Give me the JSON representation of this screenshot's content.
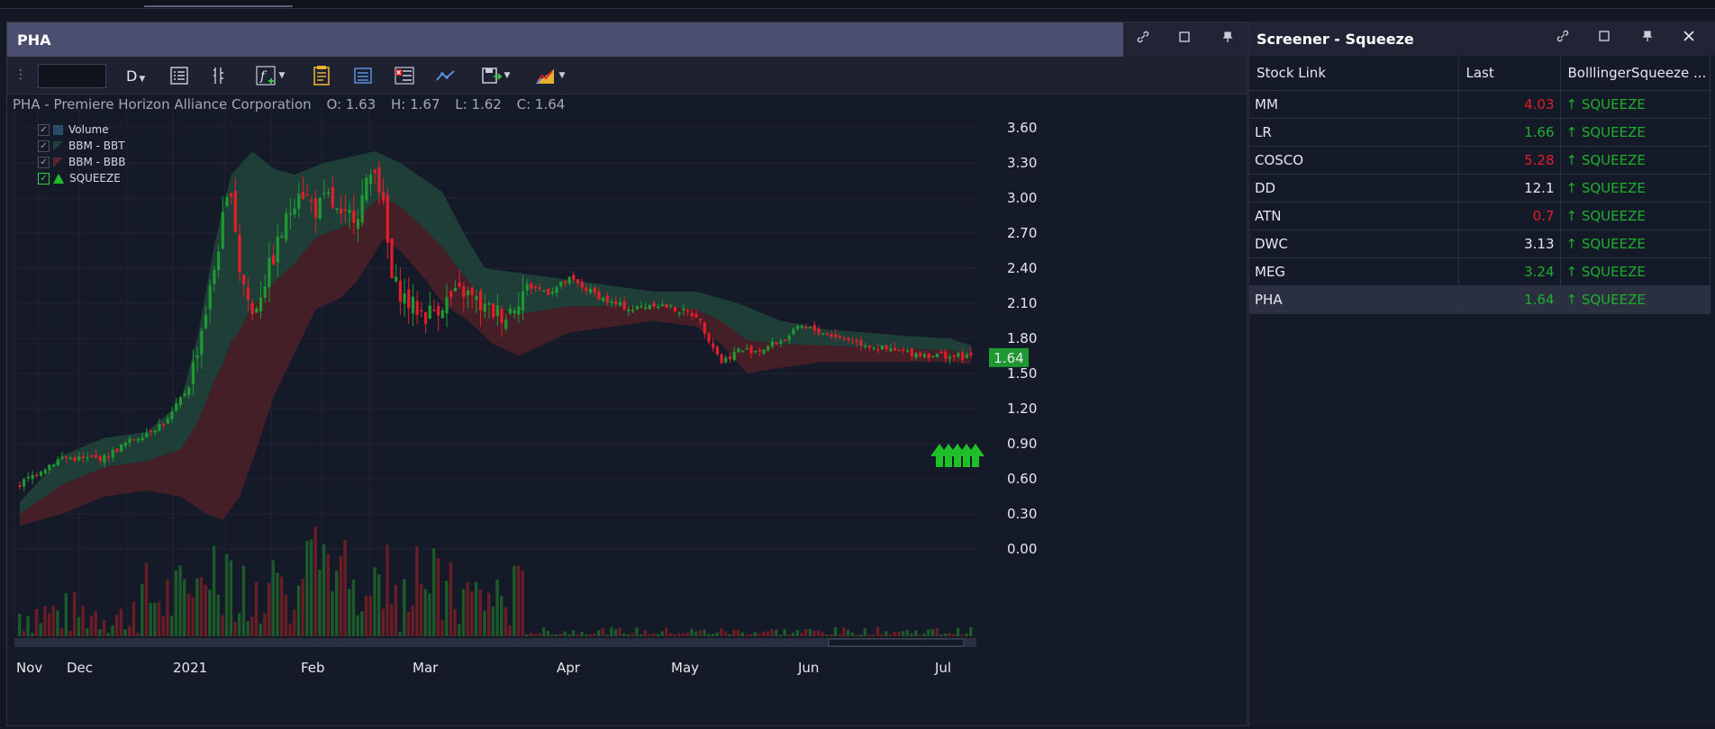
{
  "chart_panel": {
    "title": "PHA",
    "toolbar": {
      "symbol_value": "",
      "period": "D"
    },
    "info": {
      "name": "PHA - Premiere Horizon Alliance Corporation",
      "open": "O: 1.63",
      "high": "H: 1.67",
      "low": "L: 1.62",
      "close": "C: 1.64"
    },
    "legend": [
      {
        "label": "Volume",
        "checked": true
      },
      {
        "label": "BBM - BBT",
        "checked": true
      },
      {
        "label": "BBM - BBB",
        "checked": true
      },
      {
        "label": "SQUEEZE",
        "checked": true
      }
    ],
    "last_price_tag": "1.64"
  },
  "chart_data": {
    "type": "candlestick",
    "title": "PHA - Premiere Horizon Alliance Corporation",
    "y_ticks": [
      "3.60",
      "3.30",
      "3.00",
      "2.70",
      "2.40",
      "2.10",
      "1.80",
      "1.50",
      "1.20",
      "0.90",
      "0.60",
      "0.30",
      "0.00"
    ],
    "ylim": [
      -0.25,
      3.75
    ],
    "x_ticks": [
      "Nov",
      "Dec",
      "2021",
      "Feb",
      "Mar",
      "Apr",
      "May",
      "Jun",
      "Jul"
    ],
    "ohlc_last": {
      "open": 1.63,
      "high": 1.67,
      "low": 1.62,
      "close": 1.64
    },
    "close_path": [
      [
        0,
        0.55
      ],
      [
        5,
        0.68
      ],
      [
        10,
        0.78
      ],
      [
        15,
        0.77
      ],
      [
        20,
        0.78
      ],
      [
        25,
        0.9
      ],
      [
        30,
        1.0
      ],
      [
        35,
        1.1
      ],
      [
        40,
        1.4
      ],
      [
        45,
        2.2
      ],
      [
        48,
        2.8
      ],
      [
        50,
        3.1
      ],
      [
        52,
        2.4
      ],
      [
        55,
        2.0
      ],
      [
        58,
        2.3
      ],
      [
        60,
        2.5
      ],
      [
        63,
        2.8
      ],
      [
        66,
        3.1
      ],
      [
        70,
        2.9
      ],
      [
        73,
        3.0
      ],
      [
        76,
        2.8
      ],
      [
        80,
        2.9
      ],
      [
        84,
        3.3
      ],
      [
        86,
        2.9
      ],
      [
        88,
        2.3
      ],
      [
        92,
        2.1
      ],
      [
        96,
        2.0
      ],
      [
        100,
        2.1
      ],
      [
        105,
        2.2
      ],
      [
        110,
        2.05
      ],
      [
        115,
        2.0
      ],
      [
        120,
        2.25
      ],
      [
        125,
        2.2
      ],
      [
        130,
        2.3
      ],
      [
        135,
        2.2
      ],
      [
        140,
        2.1
      ],
      [
        145,
        2.05
      ],
      [
        150,
        2.1
      ],
      [
        155,
        2.05
      ],
      [
        160,
        2.0
      ],
      [
        163,
        1.8
      ],
      [
        166,
        1.6
      ],
      [
        170,
        1.7
      ],
      [
        175,
        1.7
      ],
      [
        180,
        1.78
      ],
      [
        185,
        1.9
      ],
      [
        190,
        1.85
      ],
      [
        195,
        1.8
      ],
      [
        200,
        1.75
      ],
      [
        205,
        1.7
      ],
      [
        210,
        1.68
      ],
      [
        215,
        1.66
      ],
      [
        220,
        1.65
      ],
      [
        225,
        1.64
      ]
    ],
    "bbt_path": [
      [
        0,
        0.4
      ],
      [
        10,
        0.8
      ],
      [
        20,
        0.95
      ],
      [
        30,
        1.0
      ],
      [
        38,
        1.25
      ],
      [
        42,
        1.8
      ],
      [
        46,
        2.6
      ],
      [
        50,
        3.2
      ],
      [
        55,
        3.4
      ],
      [
        60,
        3.25
      ],
      [
        65,
        3.2
      ],
      [
        72,
        3.3
      ],
      [
        78,
        3.35
      ],
      [
        84,
        3.4
      ],
      [
        90,
        3.3
      ],
      [
        96,
        3.15
      ],
      [
        100,
        3.05
      ],
      [
        105,
        2.7
      ],
      [
        110,
        2.4
      ],
      [
        120,
        2.35
      ],
      [
        130,
        2.3
      ],
      [
        140,
        2.25
      ],
      [
        150,
        2.2
      ],
      [
        160,
        2.2
      ],
      [
        170,
        2.1
      ],
      [
        180,
        1.95
      ],
      [
        190,
        1.88
      ],
      [
        200,
        1.85
      ],
      [
        210,
        1.82
      ],
      [
        220,
        1.8
      ],
      [
        225,
        1.74
      ]
    ],
    "bbb_path": [
      [
        0,
        0.2
      ],
      [
        10,
        0.3
      ],
      [
        20,
        0.45
      ],
      [
        30,
        0.5
      ],
      [
        38,
        0.45
      ],
      [
        44,
        0.3
      ],
      [
        48,
        0.25
      ],
      [
        52,
        0.45
      ],
      [
        56,
        0.85
      ],
      [
        60,
        1.3
      ],
      [
        66,
        1.75
      ],
      [
        70,
        2.05
      ],
      [
        76,
        2.15
      ],
      [
        80,
        2.3
      ],
      [
        86,
        2.65
      ],
      [
        90,
        2.55
      ],
      [
        96,
        2.3
      ],
      [
        100,
        2.1
      ],
      [
        106,
        1.95
      ],
      [
        112,
        1.75
      ],
      [
        118,
        1.65
      ],
      [
        124,
        1.75
      ],
      [
        130,
        1.85
      ],
      [
        140,
        1.9
      ],
      [
        150,
        1.95
      ],
      [
        160,
        1.9
      ],
      [
        166,
        1.75
      ],
      [
        172,
        1.5
      ],
      [
        180,
        1.55
      ],
      [
        190,
        1.6
      ],
      [
        200,
        1.6
      ],
      [
        210,
        1.6
      ],
      [
        220,
        1.6
      ],
      [
        225,
        1.58
      ]
    ],
    "squeeze_signals": 5,
    "colors": {
      "up": "#1f9a33",
      "down": "#e31e2a",
      "bbt_fill": "#1f4238",
      "bbb_fill": "#4a2028",
      "squeeze": "#1fbf2a",
      "price_tag": "#1f9a33"
    }
  },
  "screener": {
    "title": "Screener - Squeeze",
    "columns": [
      "Stock Link",
      "Last",
      "BolllingerSqueeze ..."
    ],
    "rows": [
      {
        "symbol": "MM",
        "last": "4.03",
        "last_color": "#e31e2a",
        "signal": "↑ SQUEEZE"
      },
      {
        "symbol": "LR",
        "last": "1.66",
        "last_color": "#1fae2c",
        "signal": "↑ SQUEEZE"
      },
      {
        "symbol": "COSCO",
        "last": "5.28",
        "last_color": "#e31e2a",
        "signal": "↑ SQUEEZE"
      },
      {
        "symbol": "DD",
        "last": "12.1",
        "last_color": "#e6e8ee",
        "signal": "↑ SQUEEZE"
      },
      {
        "symbol": "ATN",
        "last": "0.7",
        "last_color": "#e31e2a",
        "signal": "↑ SQUEEZE"
      },
      {
        "symbol": "DWC",
        "last": "3.13",
        "last_color": "#e6e8ee",
        "signal": "↑ SQUEEZE"
      },
      {
        "symbol": "MEG",
        "last": "3.24",
        "last_color": "#1fae2c",
        "signal": "↑ SQUEEZE"
      },
      {
        "symbol": "PHA",
        "last": "1.64",
        "last_color": "#1fae2c",
        "signal": "↑ SQUEEZE",
        "selected": true
      }
    ]
  }
}
